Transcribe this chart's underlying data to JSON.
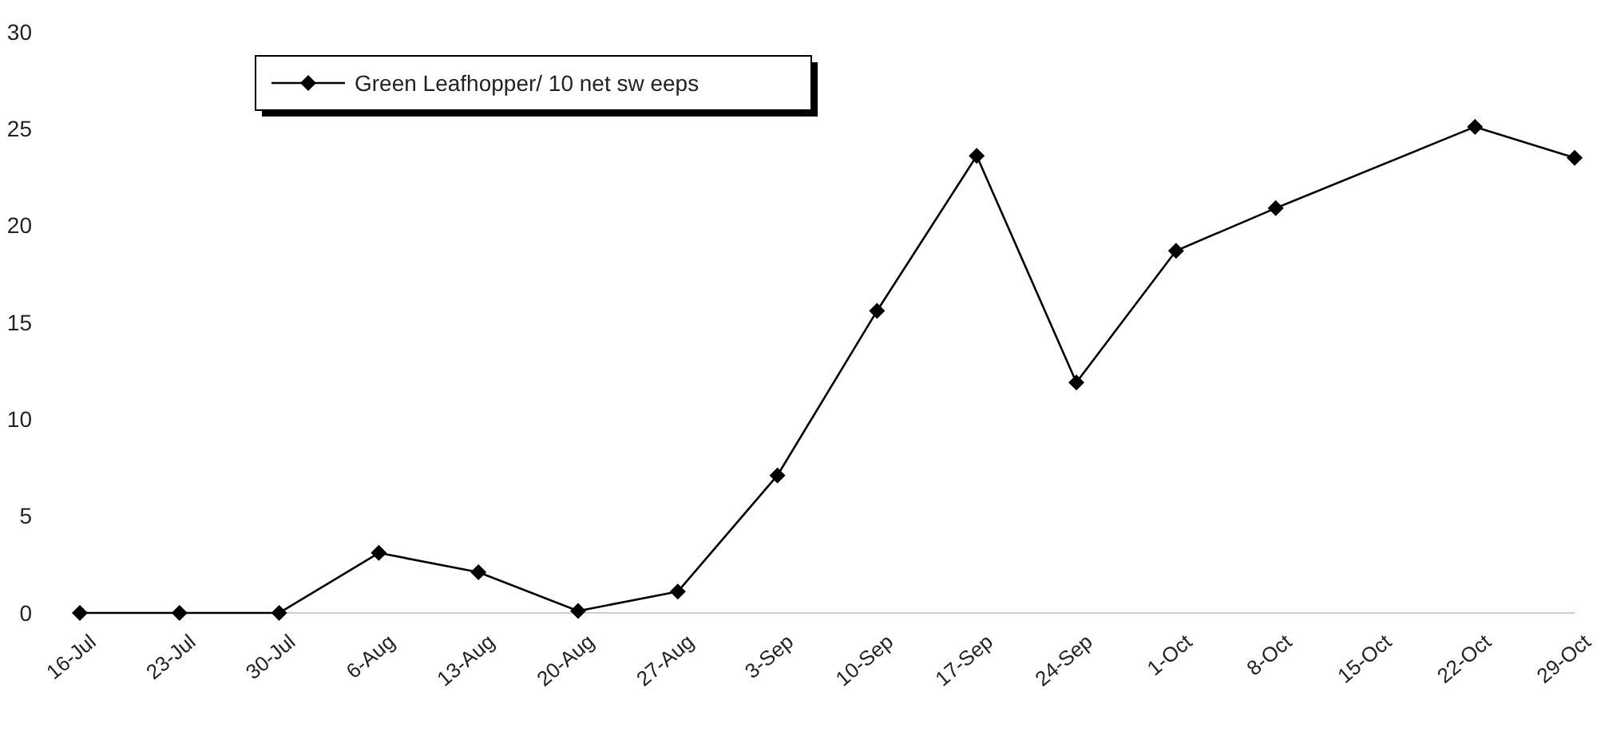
{
  "chart_data": {
    "type": "line",
    "categories": [
      "16-Jul",
      "23-Jul",
      "30-Jul",
      "6-Aug",
      "13-Aug",
      "20-Aug",
      "27-Aug",
      "3-Sep",
      "10-Sep",
      "17-Sep",
      "24-Sep",
      "1-Oct",
      "8-Oct",
      "15-Oct",
      "22-Oct",
      "29-Oct"
    ],
    "series": [
      {
        "name": "Green Leafhopper/ 10 net sw eeps",
        "color": "#000000",
        "values": [
          0,
          0,
          0,
          3.1,
          2.1,
          0.1,
          1.1,
          7.1,
          15.6,
          23.6,
          11.9,
          18.7,
          20.9,
          null,
          25.1,
          23.5
        ]
      }
    ],
    "ylim": [
      0,
      30
    ],
    "yticks": [
      0,
      5,
      10,
      15,
      20,
      25,
      30
    ],
    "grid": false,
    "legend": "top left",
    "marker": "diamond",
    "line_style": "solid"
  }
}
